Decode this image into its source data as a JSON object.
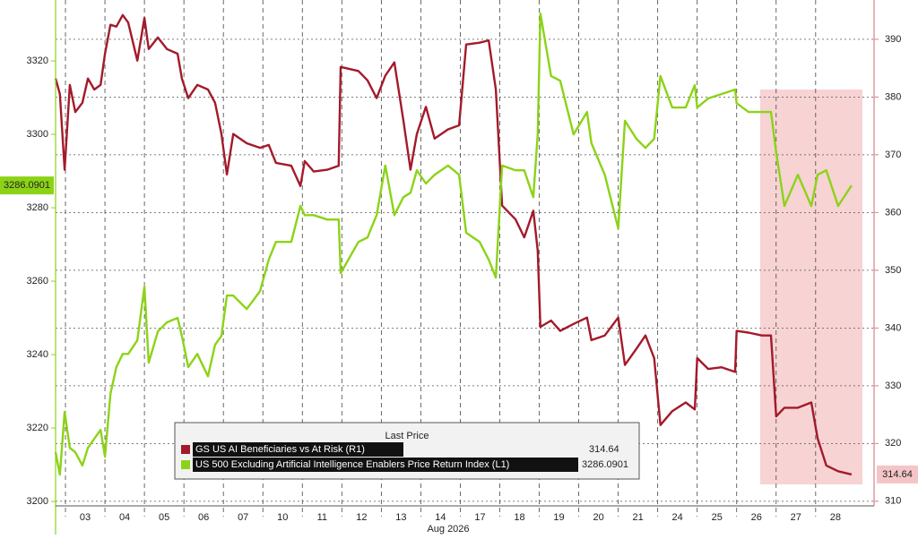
{
  "chart_data": {
    "type": "line",
    "xlabel": "Aug 2026",
    "categories": [
      "03",
      "04",
      "05",
      "06",
      "07",
      "10",
      "11",
      "12",
      "13",
      "14",
      "17",
      "18",
      "19",
      "20",
      "21",
      "24",
      "25",
      "26",
      "27",
      "28"
    ],
    "xlim": [
      -0.25,
      20.48
    ],
    "x": [
      -0.25,
      -0.14,
      -0.02,
      0.11,
      0.25,
      0.43,
      0.57,
      0.73,
      0.89,
      1.0,
      1.14,
      1.29,
      1.45,
      1.59,
      1.82,
      2.0,
      2.11,
      2.34,
      2.57,
      2.84,
      2.95,
      3.11,
      3.34,
      3.61,
      3.79,
      3.95,
      4.09,
      4.25,
      4.59,
      4.93,
      5.15,
      5.33,
      5.72,
      5.95,
      6.06,
      6.29,
      6.63,
      6.92,
      6.97,
      7.42,
      7.65,
      7.88,
      8.1,
      8.33,
      8.56,
      8.74,
      8.9,
      9.13,
      9.35,
      9.69,
      9.97,
      10.15,
      10.49,
      10.72,
      10.9,
      11.06,
      11.4,
      11.62,
      11.85,
      11.96,
      12.03,
      12.3,
      12.53,
      12.87,
      13.21,
      13.32,
      13.66,
      14.0,
      14.17,
      14.46,
      14.69,
      14.91,
      15.07,
      15.37,
      15.71,
      15.94,
      16.0,
      16.28,
      16.62,
      16.96,
      17.0,
      17.3,
      17.64,
      17.87,
      18.0,
      18.21,
      18.55,
      18.89,
      19.05,
      19.27,
      19.57,
      19.91
    ],
    "ylim": [
      3198.8,
      3336.6
    ],
    "yticks": [
      3200,
      3220,
      3240,
      3260,
      3280,
      3300,
      3320
    ],
    "y2lim": [
      309.2,
      396.8
    ],
    "y2ticks": [
      310,
      320,
      330,
      340,
      350,
      360,
      370,
      380,
      390
    ],
    "grid": true,
    "legend_title": "Last Price",
    "series": [
      {
        "name": "GS US AI Beneficiaries vs At Risk  (R1)",
        "color": "#a31a2a",
        "axis": "y2",
        "values": [
          383.2,
          380.5,
          367.4,
          382.1,
          377.4,
          379.0,
          383.2,
          381.3,
          382.1,
          387.5,
          392.5,
          392.2,
          394.2,
          392.9,
          386.3,
          393.7,
          388.3,
          390.3,
          388.3,
          387.5,
          383.2,
          379.8,
          382.1,
          381.3,
          379.0,
          373.6,
          366.6,
          373.6,
          372.0,
          371.2,
          371.7,
          368.6,
          368.1,
          364.6,
          368.9,
          367.1,
          367.4,
          368.1,
          385.2,
          384.5,
          382.9,
          379.8,
          383.7,
          386.0,
          375.9,
          367.4,
          373.6,
          378.3,
          372.8,
          374.4,
          375.1,
          389.1,
          389.4,
          389.8,
          381.3,
          361.2,
          358.8,
          355.7,
          360.3,
          353.4,
          340.2,
          341.3,
          339.5,
          340.7,
          341.8,
          337.9,
          338.7,
          341.8,
          333.6,
          336.4,
          338.7,
          334.8,
          323.2,
          325.6,
          327.1,
          325.9,
          334.8,
          332.9,
          333.2,
          332.4,
          339.5,
          339.2,
          338.7,
          338.7,
          324.7,
          326.2,
          326.2,
          327.1,
          320.9,
          316.2,
          315.2,
          314.64
        ]
      },
      {
        "name": "US 500 Excluding Artificial Intelligence Enablers Price Return Index  (L1)",
        "color": "#8cd317",
        "values": [
          3213.4,
          3207.3,
          3224.4,
          3214.6,
          3213.4,
          3209.8,
          3214.6,
          3217.1,
          3219.5,
          3212.2,
          3229.3,
          3236.6,
          3240.2,
          3240.2,
          3243.9,
          3258.5,
          3237.8,
          3246.3,
          3248.8,
          3250.0,
          3245.1,
          3236.6,
          3240.2,
          3234.1,
          3242.7,
          3245.1,
          3256.1,
          3256.1,
          3252.4,
          3257.3,
          3265.9,
          3270.7,
          3270.7,
          3280.5,
          3278.0,
          3278.0,
          3276.8,
          3276.8,
          3262.2,
          3270.7,
          3271.9,
          3278.0,
          3291.5,
          3278.0,
          3282.9,
          3284.1,
          3290.2,
          3286.6,
          3289.0,
          3291.5,
          3289.0,
          3273.2,
          3270.7,
          3265.9,
          3261.0,
          3291.5,
          3290.2,
          3290.2,
          3282.9,
          3300.0,
          3332.9,
          3315.9,
          3314.6,
          3300.0,
          3306.1,
          3297.6,
          3289.0,
          3274.4,
          3303.7,
          3298.8,
          3296.3,
          3298.8,
          3315.9,
          3307.3,
          3307.3,
          3313.4,
          3307.3,
          3309.8,
          3311.0,
          3312.2,
          3308.5,
          3306.1,
          3306.1,
          3306.1,
          3295.1,
          3280.5,
          3289.0,
          3280.5,
          3289.0,
          3290.2,
          3280.5,
          3286.0901
        ]
      }
    ]
  }
}
